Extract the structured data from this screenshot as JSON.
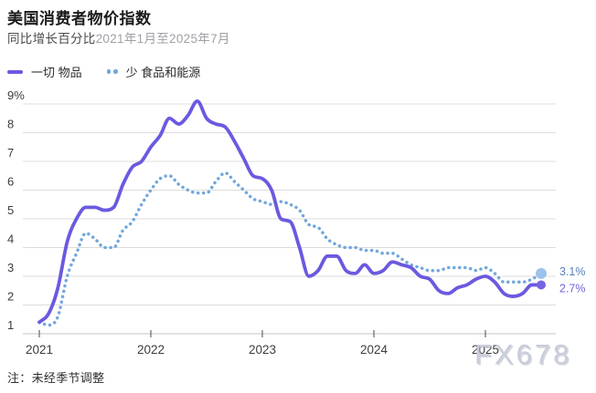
{
  "header": {
    "title": "美国消费者物价指数",
    "subtitle_label": "同比增长百分比",
    "subtitle_range": "2021年1月至2025年7月"
  },
  "legend": {
    "items": [
      {
        "label": "一切 物品",
        "style": "solid",
        "color": "#6a5ae0"
      },
      {
        "label": "少 食品和能源",
        "style": "dotted",
        "color": "#72a7db"
      }
    ]
  },
  "chart_data": {
    "type": "line",
    "title": "美国消费者物价指数",
    "subtitle": "同比增长百分比 2021年1月至2025年7月",
    "x_unit": "month",
    "x_range": [
      "2021-01",
      "2025-07"
    ],
    "xticks": [
      2021,
      2022,
      2023,
      2024,
      2025
    ],
    "yticks": [
      9,
      8,
      7,
      6,
      5,
      4,
      3,
      2,
      1
    ],
    "ytick_labels": [
      "9%",
      "8",
      "7",
      "6",
      "5",
      "4",
      "3",
      "2",
      "1"
    ],
    "ylim": [
      1,
      9
    ],
    "grid": "horizontal",
    "legend_position": "top-left",
    "series": [
      {
        "name": "少 食品和能源",
        "style": "dotted",
        "color": "#72a7db",
        "end_dot_color": "#9dc3ea",
        "label_color": "#5a7fba",
        "end_label": "3.1%",
        "values": [
          1.4,
          1.3,
          1.6,
          3.0,
          3.8,
          4.5,
          4.3,
          4.0,
          4.0,
          4.6,
          4.9,
          5.5,
          6.0,
          6.4,
          6.5,
          6.2,
          6.0,
          5.9,
          5.9,
          6.3,
          6.6,
          6.3,
          6.0,
          5.7,
          5.6,
          5.5,
          5.6,
          5.5,
          5.3,
          4.8,
          4.7,
          4.3,
          4.1,
          4.0,
          4.0,
          3.9,
          3.9,
          3.8,
          3.8,
          3.6,
          3.4,
          3.3,
          3.2,
          3.2,
          3.3,
          3.3,
          3.3,
          3.2,
          3.3,
          3.1,
          2.8,
          2.8,
          2.8,
          2.9,
          3.1
        ]
      },
      {
        "name": "一切 物品",
        "style": "solid",
        "color": "#6a5ae0",
        "end_dot_color": "#7466e3",
        "label_color": "#6f68dd",
        "end_label": "2.7%",
        "values": [
          1.4,
          1.7,
          2.6,
          4.2,
          5.0,
          5.4,
          5.4,
          5.3,
          5.4,
          6.2,
          6.8,
          7.0,
          7.5,
          7.9,
          8.5,
          8.3,
          8.6,
          9.1,
          8.5,
          8.3,
          8.2,
          7.7,
          7.1,
          6.5,
          6.4,
          6.0,
          5.0,
          4.9,
          4.0,
          3.0,
          3.2,
          3.7,
          3.7,
          3.2,
          3.1,
          3.4,
          3.1,
          3.2,
          3.5,
          3.4,
          3.3,
          3.0,
          2.9,
          2.5,
          2.4,
          2.6,
          2.7,
          2.9,
          3.0,
          2.8,
          2.4,
          2.3,
          2.4,
          2.7,
          2.7
        ]
      }
    ]
  },
  "footer": {
    "note": "注：未经季节调整"
  },
  "watermark": "FX678"
}
